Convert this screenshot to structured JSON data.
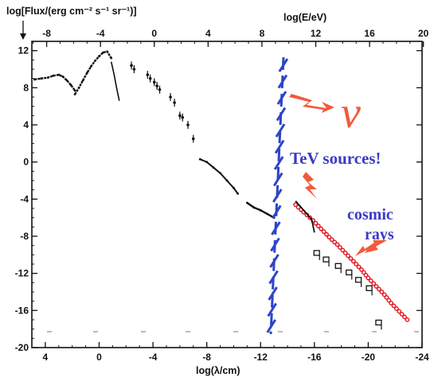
{
  "chart_data": {
    "type": "scatter",
    "title_left": "log[Flux/(erg cm⁻² s⁻¹ sr⁻¹)]",
    "title_right": "log(E/eV)",
    "xlabel": "log(λ/cm)",
    "bottom_ticks": [
      "4",
      "0",
      "-4",
      "-8",
      "-12",
      "-16",
      "-20",
      "-24"
    ],
    "top_ticks": [
      "-8",
      "-4",
      "0",
      "4",
      "8",
      "12",
      "16",
      "20"
    ],
    "left_ticks": [
      "12",
      "8",
      "4",
      "0",
      "-4",
      "-8",
      "-12",
      "-16",
      "-20"
    ],
    "xlim": [
      5,
      -24
    ],
    "ylim": [
      -20,
      13
    ],
    "annotations": {
      "neutrino": "ν",
      "tev": "TeV sources!",
      "cosmic_line1": "cosmic",
      "cosmic_line2": "rays"
    },
    "colors": {
      "annotation_red": "#f25a3c",
      "annotation_blue": "#3b3bc4",
      "hatch_blue": "#2d44c8",
      "cosmic_ray_red": "#e0141e"
    },
    "series": [
      {
        "style": "radio",
        "x": [
          4.8,
          4.3,
          3.8,
          3.4,
          3.0,
          2.7,
          2.4,
          2.1,
          1.8
        ],
        "y": [
          8.9,
          9.0,
          9.1,
          9.3,
          9.4,
          9.2,
          8.8,
          8.3,
          7.7
        ]
      },
      {
        "style": "cmb",
        "x": [
          1.8,
          1.5,
          1.2,
          0.9,
          0.6,
          0.3,
          0.0,
          -0.3,
          -0.6,
          -0.9
        ],
        "y": [
          7.3,
          8.0,
          8.8,
          9.6,
          10.3,
          10.9,
          11.4,
          11.8,
          11.9,
          11.2
        ]
      },
      {
        "style": "cmb-tail",
        "x": [
          -0.9,
          -1.1,
          -1.3,
          -1.5
        ],
        "y": [
          10.8,
          9.5,
          8.0,
          6.6
        ]
      },
      {
        "style": "points",
        "x": [
          -2.4,
          -2.6,
          -3.6,
          -3.8,
          -4.1,
          -4.3,
          -4.5,
          -5.3,
          -5.6,
          -6.0,
          -6.2,
          -6.6,
          -7.0
        ],
        "y": [
          10.4,
          10.0,
          9.4,
          9.0,
          8.6,
          8.2,
          7.8,
          7.0,
          6.4,
          5.0,
          4.8,
          4.0,
          2.5
        ]
      },
      {
        "style": "xray",
        "x": [
          -7.5,
          -8.0,
          -8.5,
          -9.0,
          -9.5,
          -10.0,
          -10.3
        ],
        "y": [
          0.3,
          0.0,
          -0.6,
          -1.2,
          -2.0,
          -2.8,
          -3.4
        ]
      },
      {
        "style": "gamma",
        "x": [
          -11.0,
          -11.5,
          -12.0,
          -12.5,
          -13.0
        ],
        "y": [
          -4.4,
          -4.9,
          -5.2,
          -5.6,
          -6.0
        ]
      },
      {
        "style": "cosmic-rays",
        "x": [
          -14.6,
          -15.2,
          -15.9,
          -16.5,
          -17.1,
          -17.7,
          -18.3,
          -18.9,
          -19.5,
          -20.0,
          -20.6,
          -21.2,
          -21.7,
          -22.3,
          -22.9
        ],
        "y": [
          -4.6,
          -5.4,
          -6.3,
          -7.2,
          -8.1,
          -8.9,
          -9.8,
          -10.7,
          -11.6,
          -12.5,
          -13.4,
          -14.3,
          -15.2,
          -16.1,
          -17.0
        ]
      },
      {
        "style": "upper-limits",
        "x": [
          -16.2,
          -16.9,
          -17.8,
          -18.6,
          -19.3,
          -20.1,
          -20.8
        ],
        "y": [
          -9.8,
          -10.5,
          -11.2,
          -11.9,
          -12.7,
          -13.6,
          -17.3
        ]
      }
    ]
  }
}
